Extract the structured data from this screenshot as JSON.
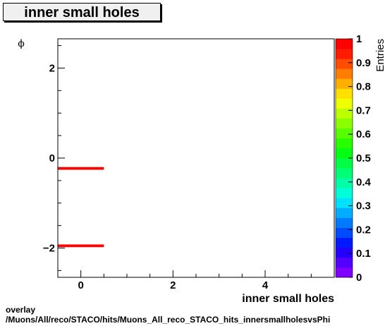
{
  "title": "inner small holes",
  "footer": {
    "line1": "overlay",
    "line2": "/Muons/All/reco/STACO/hits/Muons_All_reco_STACO_hits_innersmallholesvsPhi"
  },
  "chart_data": {
    "type": "heatmap",
    "title": "inner small holes",
    "xlabel": "inner small holes",
    "ylabel": "ϕ",
    "zlabel": "Entries",
    "xlim": [
      -0.5,
      5.5
    ],
    "ylim": [
      -2.65,
      2.65
    ],
    "zlim": [
      0,
      1
    ],
    "x_ticks": [
      0,
      2,
      4
    ],
    "y_ticks": [
      -2,
      0,
      2
    ],
    "z_ticks": [
      0,
      0.1,
      0.2,
      0.3,
      0.4,
      0.5,
      0.6,
      0.7,
      0.8,
      0.9,
      1
    ],
    "bins": [
      {
        "x": [
          -0.5,
          0.5
        ],
        "y": [
          -0.26,
          -0.2
        ],
        "value": 1
      },
      {
        "x": [
          -0.5,
          0.5
        ],
        "y": [
          -1.98,
          -1.92
        ],
        "value": 1
      }
    ]
  }
}
